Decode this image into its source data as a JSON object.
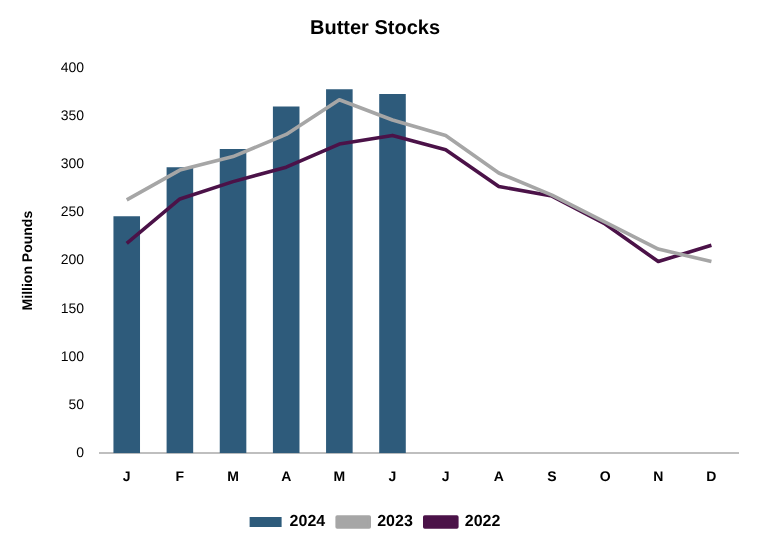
{
  "chart_data": {
    "type": "bar",
    "title": "Butter Stocks",
    "ylabel": "Million Pounds",
    "categories": [
      "J",
      "F",
      "M",
      "A",
      "M",
      "J",
      "J",
      "A",
      "S",
      "O",
      "N",
      "D"
    ],
    "series": [
      {
        "name": "2024",
        "color": "#2e5b7b",
        "values": [
          246,
          297,
          316,
          360,
          378,
          373,
          null,
          null,
          null,
          null,
          null,
          null
        ]
      },
      {
        "name": "2023",
        "type": "line",
        "color": "#a6a6a6",
        "values": [
          263,
          294,
          308,
          331,
          367,
          346,
          330,
          291,
          268,
          240,
          212,
          199
        ]
      },
      {
        "name": "2022",
        "type": "line",
        "color": "#4b1248",
        "values": [
          218,
          264,
          282,
          297,
          321,
          330,
          315,
          277,
          267,
          238,
          199,
          216
        ]
      }
    ],
    "ylim": [
      0,
      400
    ],
    "yticks": [
      0,
      50,
      100,
      150,
      200,
      250,
      300,
      350,
      400
    ],
    "grid": false,
    "legend": "bottom",
    "marker": "none"
  }
}
